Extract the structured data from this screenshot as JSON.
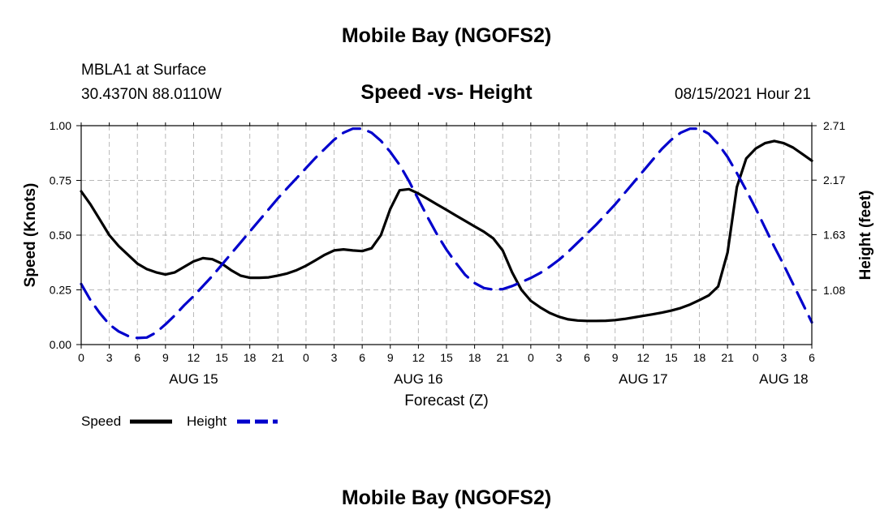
{
  "header": {
    "title": "Mobile Bay (NGOFS2)",
    "station": "MBLA1 at Surface",
    "coords": "30.4370N  88.0110W",
    "subtitle": "Speed -vs- Height",
    "datetime": "08/15/2021 Hour 21",
    "footer_title": "Mobile Bay (NGOFS2)"
  },
  "chart_data": {
    "type": "line",
    "title": "Speed -vs- Height",
    "xlabel": "Forecast (Z)",
    "ylabel_left": "Speed (Knots)",
    "ylabel_right": "Height (feet)",
    "x_range_hours": [
      0,
      78
    ],
    "x_tick_step_hours": 3,
    "x_tick_labels": [
      "0",
      "3",
      "6",
      "9",
      "12",
      "15",
      "18",
      "21",
      "0",
      "3",
      "6",
      "9",
      "12",
      "15",
      "18",
      "21",
      "0",
      "3",
      "6",
      "9",
      "12",
      "15",
      "18",
      "21",
      "0",
      "3",
      "6"
    ],
    "day_labels": [
      {
        "label": "AUG 15",
        "hour": 12
      },
      {
        "label": "AUG 16",
        "hour": 36
      },
      {
        "label": "AUG 17",
        "hour": 60
      },
      {
        "label": "AUG 18",
        "hour": 75
      }
    ],
    "ylim_left": [
      0,
      1.0
    ],
    "yticks_left": [
      "0.00",
      "0.25",
      "0.50",
      "0.75",
      "1.00"
    ],
    "ylim_right": [
      0.54,
      2.71
    ],
    "yticks_right": [
      {
        "label": "1.08",
        "value": 1.08
      },
      {
        "label": "1.63",
        "value": 1.63
      },
      {
        "label": "2.17",
        "value": 2.17
      },
      {
        "label": "2.71",
        "value": 2.71
      }
    ],
    "grid": true,
    "series": [
      {
        "name": "Speed",
        "axis": "left",
        "color": "#000000",
        "dash": "solid",
        "x": [
          0,
          1,
          2,
          3,
          4,
          5,
          6,
          7,
          8,
          9,
          10,
          11,
          12,
          13,
          14,
          15,
          16,
          17,
          18,
          19,
          20,
          21,
          22,
          23,
          24,
          25,
          26,
          27,
          28,
          29,
          30,
          31,
          32,
          33,
          34,
          35,
          36,
          37,
          38,
          39,
          40,
          41,
          42,
          43,
          44,
          45,
          46,
          47,
          48,
          49,
          50,
          51,
          52,
          53,
          54,
          55,
          56,
          57,
          58,
          59,
          60,
          61,
          62,
          63,
          64,
          65,
          66,
          67,
          68,
          69,
          70,
          71,
          72,
          73,
          74,
          75,
          76,
          77,
          78
        ],
        "values": [
          0.7,
          0.64,
          0.57,
          0.5,
          0.45,
          0.41,
          0.37,
          0.345,
          0.33,
          0.32,
          0.33,
          0.355,
          0.38,
          0.395,
          0.39,
          0.37,
          0.34,
          0.315,
          0.305,
          0.305,
          0.307,
          0.315,
          0.325,
          0.34,
          0.36,
          0.385,
          0.41,
          0.43,
          0.435,
          0.43,
          0.427,
          0.44,
          0.5,
          0.62,
          0.705,
          0.71,
          0.69,
          0.665,
          0.64,
          0.615,
          0.59,
          0.565,
          0.54,
          0.515,
          0.485,
          0.43,
          0.33,
          0.25,
          0.2,
          0.17,
          0.145,
          0.127,
          0.115,
          0.11,
          0.108,
          0.108,
          0.109,
          0.112,
          0.117,
          0.124,
          0.131,
          0.138,
          0.146,
          0.155,
          0.167,
          0.183,
          0.203,
          0.225,
          0.265,
          0.42,
          0.72,
          0.85,
          0.895,
          0.92,
          0.93,
          0.92,
          0.9,
          0.87,
          0.84
        ]
      },
      {
        "name": "Height",
        "axis": "right",
        "color": "#0000cc",
        "dash": "dashed",
        "x": [
          0,
          1,
          2,
          3,
          4,
          5,
          6,
          7,
          8,
          9,
          10,
          11,
          12,
          13,
          14,
          15,
          16,
          17,
          18,
          19,
          20,
          21,
          22,
          23,
          24,
          25,
          26,
          27,
          28,
          29,
          30,
          31,
          32,
          33,
          34,
          35,
          36,
          37,
          38,
          39,
          40,
          41,
          42,
          43,
          44,
          45,
          46,
          47,
          48,
          49,
          50,
          51,
          52,
          53,
          54,
          55,
          56,
          57,
          58,
          59,
          60,
          61,
          62,
          63,
          64,
          65,
          66,
          67,
          68,
          69,
          70,
          71,
          72,
          73,
          74,
          75,
          76,
          77,
          78
        ],
        "values": [
          1.14,
          0.98,
          0.85,
          0.74,
          0.67,
          0.625,
          0.605,
          0.61,
          0.66,
          0.74,
          0.83,
          0.93,
          1.02,
          1.12,
          1.22,
          1.33,
          1.44,
          1.55,
          1.66,
          1.77,
          1.88,
          1.99,
          2.09,
          2.19,
          2.29,
          2.39,
          2.48,
          2.57,
          2.64,
          2.68,
          2.68,
          2.64,
          2.56,
          2.45,
          2.32,
          2.16,
          1.98,
          1.8,
          1.63,
          1.48,
          1.35,
          1.23,
          1.15,
          1.1,
          1.085,
          1.09,
          1.12,
          1.16,
          1.2,
          1.25,
          1.31,
          1.38,
          1.46,
          1.55,
          1.64,
          1.73,
          1.83,
          1.93,
          2.04,
          2.15,
          2.26,
          2.37,
          2.48,
          2.57,
          2.64,
          2.68,
          2.68,
          2.63,
          2.53,
          2.4,
          2.24,
          2.07,
          1.89,
          1.7,
          1.51,
          1.33,
          1.14,
          0.95,
          0.76
        ]
      }
    ],
    "legend": [
      {
        "label": "Speed",
        "color": "#000000",
        "dash": "solid"
      },
      {
        "label": "Height",
        "color": "#0000cc",
        "dash": "dashed"
      }
    ],
    "legend_position": "bottom-left"
  }
}
